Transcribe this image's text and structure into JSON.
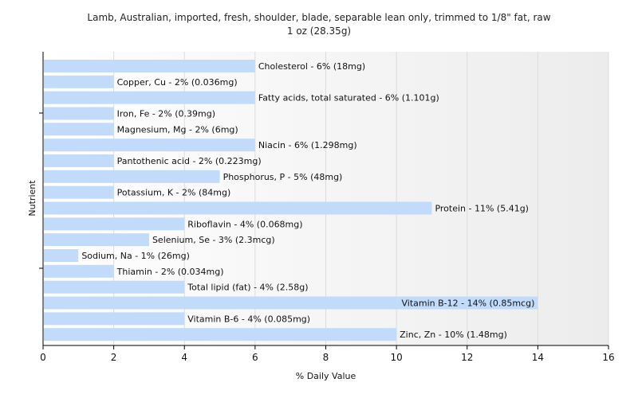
{
  "chart_data": {
    "type": "bar",
    "orientation": "horizontal",
    "title": "Lamb, Australian, imported, fresh, shoulder, blade, separable lean only, trimmed to 1/8\" fat, raw",
    "subtitle": "1 oz (28.35g)",
    "xlabel": "% Daily Value",
    "ylabel": "Nutrient",
    "xlim": [
      0,
      16
    ],
    "xticks": [
      0,
      2,
      4,
      6,
      8,
      10,
      12,
      14,
      16
    ],
    "grid": true,
    "bar_color": "#c2dbfb",
    "categories": [
      "Cholesterol",
      "Copper, Cu",
      "Fatty acids, total saturated",
      "Iron, Fe",
      "Magnesium, Mg",
      "Niacin",
      "Pantothenic acid",
      "Phosphorus, P",
      "Potassium, K",
      "Protein",
      "Riboflavin",
      "Selenium, Se",
      "Sodium, Na",
      "Thiamin",
      "Total lipid (fat)",
      "Vitamin B-12",
      "Vitamin B-6",
      "Zinc, Zn"
    ],
    "values": [
      6,
      2,
      6,
      2,
      2,
      6,
      2,
      5,
      2,
      11,
      4,
      3,
      1,
      2,
      4,
      14,
      4,
      10
    ],
    "labels": [
      "Cholesterol - 6% (18mg)",
      "Copper, Cu - 2% (0.036mg)",
      "Fatty acids, total saturated - 6% (1.101g)",
      "Iron, Fe - 2% (0.39mg)",
      "Magnesium, Mg - 2% (6mg)",
      "Niacin - 6% (1.298mg)",
      "Pantothenic acid - 2% (0.223mg)",
      "Phosphorus, P - 5% (48mg)",
      "Potassium, K - 2% (84mg)",
      "Protein - 11% (5.41g)",
      "Riboflavin - 4% (0.068mg)",
      "Selenium, Se - 3% (2.3mcg)",
      "Sodium, Na - 1% (26mg)",
      "Thiamin - 2% (0.034mg)",
      "Total lipid (fat) - 4% (2.58g)",
      "Vitamin B-12 - 14% (0.85mcg)",
      "Vitamin B-6 - 4% (0.085mg)",
      "Zinc, Zn - 10% (1.48mg)"
    ]
  }
}
